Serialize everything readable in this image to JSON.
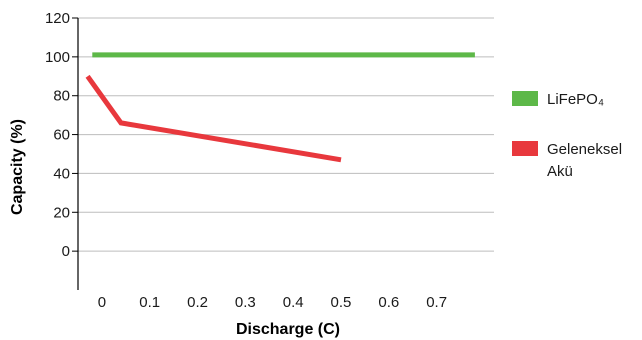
{
  "chart_data": {
    "type": "line",
    "xlabel": "Discharge (C)",
    "ylabel": "Capacity (%)",
    "ylim": [
      -20,
      120
    ],
    "y_ticks": [
      "120",
      "100",
      "80",
      "60",
      "40",
      "20",
      "0"
    ],
    "y_tick_values": [
      120,
      100,
      80,
      60,
      40,
      20,
      0
    ],
    "x_ticks": [
      "0",
      "0.1",
      "0.2",
      "0.3",
      "0.4",
      "0.5",
      "0.6",
      "0.7"
    ],
    "x_tick_values": [
      0,
      0.1,
      0.2,
      0.3,
      0.4,
      0.5,
      0.6,
      0.7
    ],
    "xlim": [
      -0.05,
      0.82
    ],
    "grid": true,
    "legend_position": "right",
    "series": [
      {
        "name": "LiFePO₄",
        "color": "#5db848",
        "points": [
          [
            -0.02,
            101
          ],
          [
            0.78,
            101
          ]
        ]
      },
      {
        "name_lines": [
          "Geleneksel",
          "Akü"
        ],
        "color": "#e8383d",
        "points": [
          [
            -0.03,
            90
          ],
          [
            0.04,
            66
          ],
          [
            0.5,
            47
          ]
        ]
      }
    ]
  }
}
